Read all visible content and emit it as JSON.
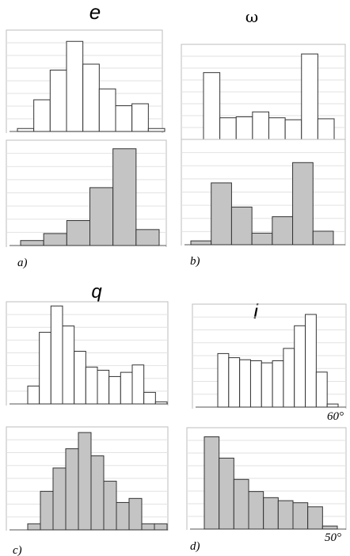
{
  "panel_labels": {
    "a": "a)",
    "b": "b)",
    "c": "c)",
    "d": "d)"
  },
  "titles": {
    "a": "e",
    "b": "ω",
    "c": "q",
    "d": "i"
  },
  "axis_notes": {
    "c_top": "60°",
    "d_bottom": "50°"
  },
  "colors": {
    "outline": "#333333",
    "gray_fill": "#c4c4c4",
    "white_fill": "#ffffff",
    "grid": "#e2e2e2",
    "frame": "#bdbdbd"
  },
  "chart_data": [
    {
      "id": "a-top",
      "type": "bar",
      "fill": "white",
      "ylim": [
        0,
        1
      ],
      "values": [
        0.03,
        0.32,
        0.62,
        0.91,
        0.68,
        0.43,
        0.26,
        0.28,
        0.03
      ]
    },
    {
      "id": "a-bottom",
      "type": "bar",
      "fill": "gray",
      "ylim": [
        0,
        1
      ],
      "values": [
        0.05,
        0.12,
        0.25,
        0.58,
        0.97,
        0.16
      ]
    },
    {
      "id": "b-top",
      "type": "bar",
      "fill": "white",
      "ylim": [
        0,
        1
      ],
      "values": [
        0.68,
        0.22,
        0.23,
        0.28,
        0.22,
        0.2,
        0.87,
        0.21
      ]
    },
    {
      "id": "b-bottom",
      "type": "bar",
      "fill": "gray",
      "ylim": [
        0,
        1
      ],
      "values": [
        0.04,
        0.64,
        0.39,
        0.12,
        0.29,
        0.85,
        0.14
      ]
    },
    {
      "id": "c-top",
      "type": "bar",
      "fill": "white",
      "ylim": [
        0,
        1
      ],
      "values": [
        0.17,
        0.68,
        0.93,
        0.74,
        0.5,
        0.35,
        0.32,
        0.26,
        0.3,
        0.37,
        0.11,
        0.02
      ]
    },
    {
      "id": "c-bottom",
      "type": "bar",
      "fill": "gray",
      "ylim": [
        0,
        1
      ],
      "values": [
        0.06,
        0.38,
        0.61,
        0.8,
        0.96,
        0.73,
        0.48,
        0.27,
        0.31,
        0.06,
        0.06
      ]
    },
    {
      "id": "d-top",
      "type": "bar",
      "fill": "white",
      "ylim": [
        0,
        1
      ],
      "values": [
        0.52,
        0.48,
        0.46,
        0.45,
        0.43,
        0.45,
        0.57,
        0.79,
        0.9,
        0.34,
        0.03
      ]
    },
    {
      "id": "d-bottom",
      "type": "bar",
      "fill": "gray",
      "ylim": [
        0,
        1
      ],
      "values": [
        0.91,
        0.7,
        0.49,
        0.37,
        0.31,
        0.28,
        0.26,
        0.22,
        0.03
      ]
    }
  ]
}
